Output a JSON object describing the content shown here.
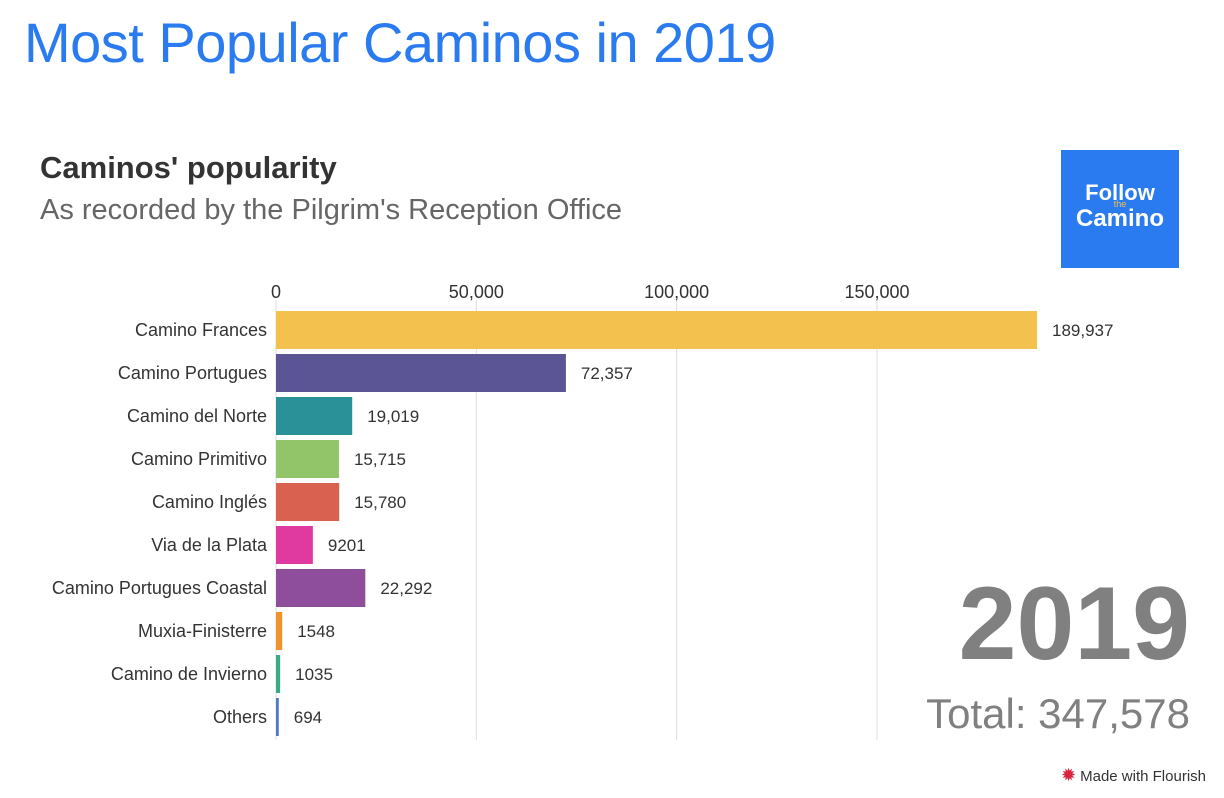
{
  "page": {
    "title": "Most Popular Caminos in 2019",
    "footer": "Made with Flourish"
  },
  "logo": {
    "line1": "Follow",
    "line2": "the",
    "line3": "Camino"
  },
  "colors": {
    "title": "#2b7bf0",
    "year": "#808080",
    "grid": "#dddddd"
  },
  "chart_data": {
    "type": "bar",
    "orientation": "horizontal",
    "title": "Caminos' popularity",
    "subtitle": "As recorded by the Pilgrim's Reception Office",
    "xlim": [
      0,
      189937
    ],
    "ticks": [
      0,
      50000,
      100000,
      150000
    ],
    "tick_labels": [
      "0",
      "50,000",
      "100,000",
      "150,000"
    ],
    "grid": true,
    "year": "2019",
    "total_label": "Total: 347,578",
    "categories": [
      "Camino Frances",
      "Camino Portugues",
      "Camino del Norte",
      "Camino Primitivo",
      "Camino Inglés",
      "Via de la Plata",
      "Camino Portugues Coastal",
      "Muxia-Finisterre",
      "Camino de Invierno",
      "Others"
    ],
    "values": [
      189937,
      72357,
      19019,
      15715,
      15780,
      9201,
      22292,
      1548,
      1035,
      694
    ],
    "value_labels": [
      "189,937",
      "72,357",
      "19,019",
      "15,715",
      "15,780",
      "9201",
      "22,292",
      "1548",
      "1035",
      "694"
    ],
    "colors": [
      "#f2c14e",
      "#5b5596",
      "#2a9198",
      "#92c46a",
      "#d9614f",
      "#e03aa0",
      "#8f4e9b",
      "#f0932b",
      "#3aa986",
      "#4c7bc4"
    ]
  }
}
